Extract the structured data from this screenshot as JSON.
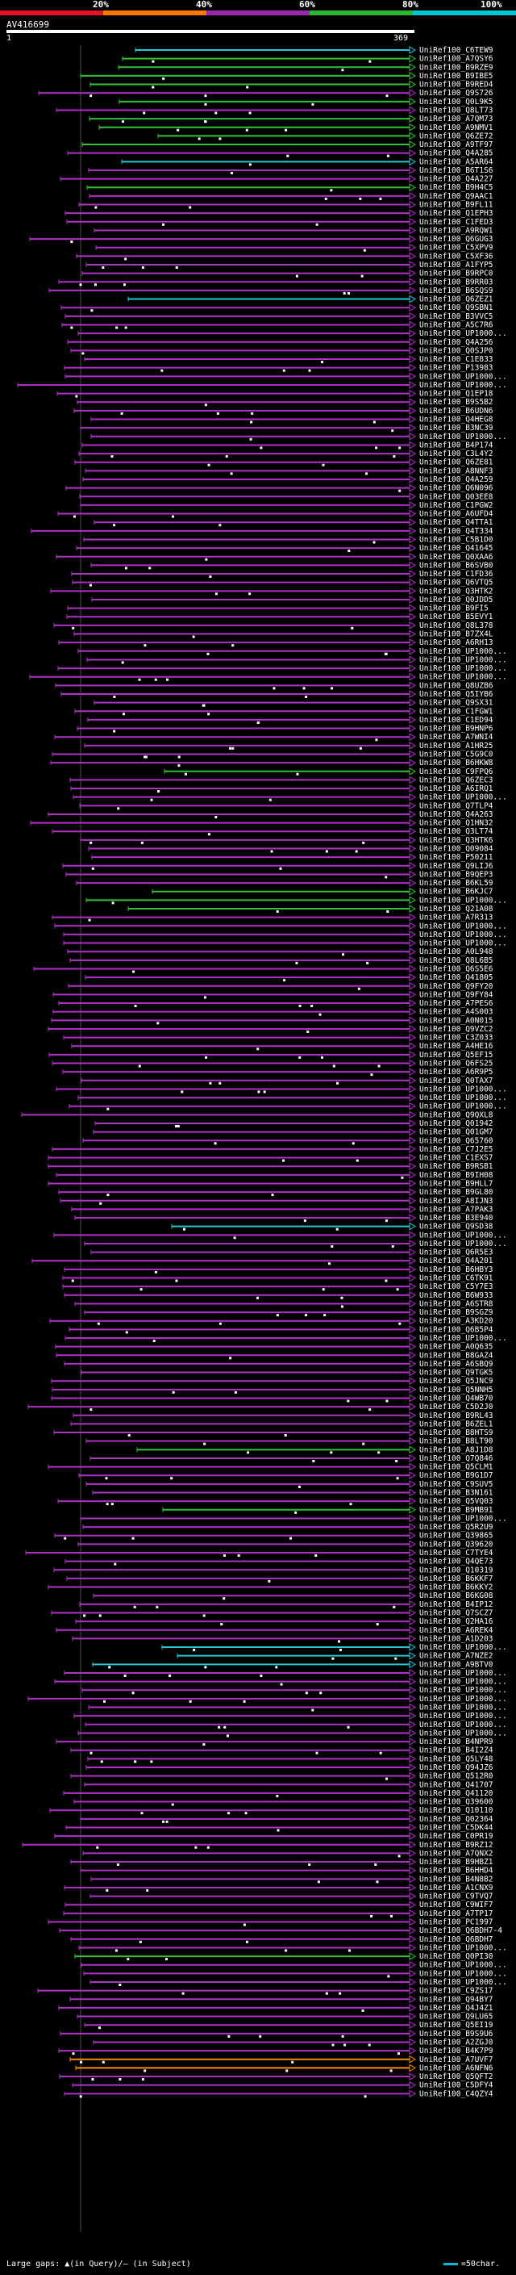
{
  "legend": {
    "labels": [
      "20%",
      "40%",
      "60%",
      "80%",
      "100%"
    ],
    "colors": [
      "#e8102b",
      "#ff7a00",
      "#9b27b0",
      "#2db52d",
      "#00c8d8"
    ]
  },
  "query": {
    "name": "AV416699",
    "start": "1",
    "end": "369"
  },
  "colors": {
    "violet": "#b030c8",
    "green": "#34c234",
    "cyan": "#20c8d8",
    "orange": "#ff8c00",
    "white": "#ffffff"
  },
  "hits": [
    {
      "label": "UniRef100_C6TEW9",
      "color": "cyan"
    },
    {
      "label": "UniRef100_A7QSY6",
      "color": "green"
    },
    {
      "label": "UniRef100_B9RZE9",
      "color": "green"
    },
    {
      "label": "UniRef100_B9IBE5",
      "color": "green"
    },
    {
      "label": "UniRef100_B9RED4",
      "color": "green"
    },
    {
      "label": "UniRef100_Q9S726",
      "color": "violet"
    },
    {
      "label": "UniRef100_Q0L9K5",
      "color": "green"
    },
    {
      "label": "UniRef100_Q8LT73",
      "color": "violet"
    },
    {
      "label": "UniRef100_A7QM73",
      "color": "green"
    },
    {
      "label": "UniRef100_A9NMV1",
      "color": "green"
    },
    {
      "label": "UniRef100_Q6ZE72",
      "color": "green"
    },
    {
      "label": "UniRef100_A9TF97",
      "color": "green"
    },
    {
      "label": "UniRef100_Q4A285",
      "color": "violet"
    },
    {
      "label": "UniRef100_A5AR64",
      "color": "cyan"
    },
    {
      "label": "UniRef100_B6T1S6",
      "color": "violet"
    },
    {
      "label": "UniRef100_Q4A227",
      "color": "violet"
    },
    {
      "label": "UniRef100_B9H4C5",
      "color": "green"
    },
    {
      "label": "UniRef100_Q9AAC1",
      "color": "violet"
    },
    {
      "label": "UniRef100_B9FL11",
      "color": "violet"
    },
    {
      "label": "UniRef100_Q1EPH3",
      "color": "violet"
    },
    {
      "label": "UniRef100_C1FED3",
      "color": "violet"
    },
    {
      "label": "UniRef100_A9RQW1",
      "color": "violet"
    },
    {
      "label": "UniRef100_Q6GUG3",
      "color": "violet"
    },
    {
      "label": "UniRef100_C5XPV9",
      "color": "violet"
    },
    {
      "label": "UniRef100_C5XF36",
      "color": "violet"
    },
    {
      "label": "UniRef100_A1FYP5",
      "color": "violet"
    },
    {
      "label": "UniRef100_B9RPC0",
      "color": "violet"
    },
    {
      "label": "UniRef100_B9RR03",
      "color": "violet"
    },
    {
      "label": "UniRef100_B6SQS9",
      "color": "violet"
    },
    {
      "label": "UniRef100_Q6ZEZ1",
      "color": "cyan"
    },
    {
      "label": "UniRef100_Q9SBN1",
      "color": "violet"
    },
    {
      "label": "UniRef100_B3VVC5",
      "color": "violet"
    },
    {
      "label": "UniRef100_A5C7R6",
      "color": "violet"
    },
    {
      "label": "UniRef100_UP1000...",
      "color": "violet"
    },
    {
      "label": "UniRef100_Q4A256",
      "color": "violet"
    },
    {
      "label": "UniRef100_Q0SJP0",
      "color": "violet"
    },
    {
      "label": "UniRef100_C1E833",
      "color": "violet"
    },
    {
      "label": "UniRef100_P13983",
      "color": "violet"
    },
    {
      "label": "UniRef100_UP1000...",
      "color": "violet"
    },
    {
      "label": "UniRef100_UP1000...",
      "color": "violet"
    },
    {
      "label": "UniRef100_Q1EP18",
      "color": "violet"
    },
    {
      "label": "UniRef100_B9S5B2",
      "color": "violet"
    },
    {
      "label": "UniRef100_B6UDN6",
      "color": "violet"
    },
    {
      "label": "UniRef100_Q4HEG8",
      "color": "violet"
    },
    {
      "label": "UniRef100_B3NC39",
      "color": "violet"
    },
    {
      "label": "UniRef100_UP1000...",
      "color": "violet"
    },
    {
      "label": "UniRef100_B4P174",
      "color": "violet"
    },
    {
      "label": "UniRef100_C3L4Y2",
      "color": "violet"
    },
    {
      "label": "UniRef100_Q6ZE81",
      "color": "violet"
    },
    {
      "label": "UniRef100_A8NNF3",
      "color": "violet"
    },
    {
      "label": "UniRef100_Q4A259",
      "color": "violet"
    },
    {
      "label": "UniRef100_Q6N096",
      "color": "violet"
    },
    {
      "label": "UniRef100_Q03EE8",
      "color": "violet"
    },
    {
      "label": "UniRef100_C1PGW2",
      "color": "violet"
    },
    {
      "label": "UniRef100_A6UFD4",
      "color": "violet"
    },
    {
      "label": "UniRef100_Q4TTA1",
      "color": "violet"
    },
    {
      "label": "UniRef100_Q4T334",
      "color": "violet"
    },
    {
      "label": "UniRef100_C5B1D0",
      "color": "violet"
    },
    {
      "label": "UniRef100_Q41645",
      "color": "violet"
    },
    {
      "label": "UniRef100_Q0XAA6",
      "color": "violet"
    },
    {
      "label": "UniRef100_B6SVB0",
      "color": "violet"
    },
    {
      "label": "UniRef100_C1FD36",
      "color": "violet"
    },
    {
      "label": "UniRef100_Q6VTQ5",
      "color": "violet"
    },
    {
      "label": "UniRef100_Q3HTK2",
      "color": "violet"
    },
    {
      "label": "UniRef100_Q0JDD5",
      "color": "violet"
    },
    {
      "label": "UniRef100_B9FI5",
      "color": "violet"
    },
    {
      "label": "UniRef100_B5EVY1",
      "color": "violet"
    },
    {
      "label": "UniRef100_Q8L378",
      "color": "violet"
    },
    {
      "label": "UniRef100_B7ZX4L",
      "color": "violet"
    },
    {
      "label": "UniRef100_A6RH13",
      "color": "violet"
    },
    {
      "label": "UniRef100_UP1000...",
      "color": "violet"
    },
    {
      "label": "UniRef100_UP1000...",
      "color": "violet"
    },
    {
      "label": "UniRef100_UP1000...",
      "color": "violet"
    },
    {
      "label": "UniRef100_UP1000...",
      "color": "violet"
    },
    {
      "label": "UniRef100_Q8UZB6",
      "color": "violet"
    },
    {
      "label": "UniRef100_Q5IYB6",
      "color": "violet"
    },
    {
      "label": "UniRef100_Q9SX31",
      "color": "violet"
    },
    {
      "label": "UniRef100_C1FGW1",
      "color": "violet"
    },
    {
      "label": "UniRef100_C1ED94",
      "color": "violet"
    },
    {
      "label": "UniRef100_B9HNP6",
      "color": "violet"
    },
    {
      "label": "UniRef100_A7WNI4",
      "color": "violet"
    },
    {
      "label": "UniRef100_A1HR25",
      "color": "violet"
    },
    {
      "label": "UniRef100_C5G9C0",
      "color": "violet"
    },
    {
      "label": "UniRef100_B6HKW8",
      "color": "violet"
    },
    {
      "label": "UniRef100_C9FPQ6",
      "color": "green"
    },
    {
      "label": "UniRef100_Q6ZEC3",
      "color": "violet"
    },
    {
      "label": "UniRef100_A6IRQ1",
      "color": "violet"
    },
    {
      "label": "UniRef100_UP1000...",
      "color": "violet"
    },
    {
      "label": "UniRef100_Q7TLP4",
      "color": "violet"
    },
    {
      "label": "UniRef100_Q4A263",
      "color": "violet"
    },
    {
      "label": "UniRef100_Q1HN32",
      "color": "violet"
    },
    {
      "label": "UniRef100_Q3LT74",
      "color": "violet"
    },
    {
      "label": "UniRef100_Q3HTK6",
      "color": "violet"
    },
    {
      "label": "UniRef100_Q09084",
      "color": "violet"
    },
    {
      "label": "UniRef100_P50211",
      "color": "violet"
    },
    {
      "label": "UniRef100_Q9LIJ6",
      "color": "violet"
    },
    {
      "label": "UniRef100_B9QEP3",
      "color": "violet"
    },
    {
      "label": "UniRef100_B6KL59",
      "color": "violet"
    },
    {
      "label": "UniRef100_B6KJC7",
      "color": "green"
    },
    {
      "label": "UniRef100_UP1000...",
      "color": "green"
    },
    {
      "label": "UniRef100_Q21A08",
      "color": "green"
    },
    {
      "label": "UniRef100_A7R313",
      "color": "violet"
    },
    {
      "label": "UniRef100_UP1000...",
      "color": "violet"
    },
    {
      "label": "UniRef100_UP1000...",
      "color": "violet"
    },
    {
      "label": "UniRef100_UP1000...",
      "color": "violet"
    },
    {
      "label": "UniRef100_A0L948",
      "color": "violet"
    },
    {
      "label": "UniRef100_Q8L6B5",
      "color": "violet"
    },
    {
      "label": "UniRef100_Q6S5E6",
      "color": "violet"
    },
    {
      "label": "UniRef100_Q41805",
      "color": "violet"
    },
    {
      "label": "UniRef100_Q9FY20",
      "color": "violet"
    },
    {
      "label": "UniRef100_Q9FY84",
      "color": "violet"
    },
    {
      "label": "UniRef100_A7PES6",
      "color": "violet"
    },
    {
      "label": "UniRef100_A4S003",
      "color": "violet"
    },
    {
      "label": "UniRef100_A0N015",
      "color": "violet"
    },
    {
      "label": "UniRef100_Q9VZC2",
      "color": "violet"
    },
    {
      "label": "UniRef100_C3Z033",
      "color": "violet"
    },
    {
      "label": "UniRef100_A4HE16",
      "color": "violet"
    },
    {
      "label": "UniRef100_Q5EF15",
      "color": "violet"
    },
    {
      "label": "UniRef100_Q6FS25",
      "color": "violet"
    },
    {
      "label": "UniRef100_A6R9P5",
      "color": "violet"
    },
    {
      "label": "UniRef100_Q0TAX7",
      "color": "violet"
    },
    {
      "label": "UniRef100_UP1000...",
      "color": "violet"
    },
    {
      "label": "UniRef100_UP1000...",
      "color": "violet"
    },
    {
      "label": "UniRef100_UP1000...",
      "color": "violet"
    },
    {
      "label": "UniRef100_Q9QXL8",
      "color": "violet"
    },
    {
      "label": "UniRef100_Q01942",
      "color": "violet"
    },
    {
      "label": "UniRef100_Q01GM7",
      "color": "violet"
    },
    {
      "label": "UniRef100_Q65760",
      "color": "violet"
    },
    {
      "label": "UniRef100_C7J2E5",
      "color": "violet"
    },
    {
      "label": "UniRef100_C1EXS7",
      "color": "violet"
    },
    {
      "label": "UniRef100_B9RSB1",
      "color": "violet"
    },
    {
      "label": "UniRef100_B9IH08",
      "color": "violet"
    },
    {
      "label": "UniRef100_B9HLL7",
      "color": "violet"
    },
    {
      "label": "UniRef100_B9GL80",
      "color": "violet"
    },
    {
      "label": "UniRef100_A8IJN3",
      "color": "violet"
    },
    {
      "label": "UniRef100_A7PAK3",
      "color": "violet"
    },
    {
      "label": "UniRef100_B3E940",
      "color": "violet"
    },
    {
      "label": "UniRef100_Q9SD38",
      "color": "cyan"
    },
    {
      "label": "UniRef100_UP1000...",
      "color": "violet"
    },
    {
      "label": "UniRef100_UP1000...",
      "color": "violet"
    },
    {
      "label": "UniRef100_Q6R5E3",
      "color": "violet"
    },
    {
      "label": "UniRef100_Q4A201",
      "color": "violet"
    },
    {
      "label": "UniRef100_B6HBY3",
      "color": "violet"
    },
    {
      "label": "UniRef100_C6TK91",
      "color": "violet"
    },
    {
      "label": "UniRef100_C5Y7E3",
      "color": "violet"
    },
    {
      "label": "UniRef100_B6W933",
      "color": "violet"
    },
    {
      "label": "UniRef100_A6STR8",
      "color": "violet"
    },
    {
      "label": "UniRef100_B9SGZ9",
      "color": "violet"
    },
    {
      "label": "UniRef100_A3KD20",
      "color": "violet"
    },
    {
      "label": "UniRef100_Q6B5P4",
      "color": "violet"
    },
    {
      "label": "UniRef100_UP1000...",
      "color": "violet"
    },
    {
      "label": "UniRef100_A0Q635",
      "color": "violet"
    },
    {
      "label": "UniRef100_B8GAZ4",
      "color": "violet"
    },
    {
      "label": "UniRef100_A6SBQ9",
      "color": "violet"
    },
    {
      "label": "UniRef100_Q9TGK5",
      "color": "violet"
    },
    {
      "label": "UniRef100_Q5JNC9",
      "color": "violet"
    },
    {
      "label": "UniRef100_Q5NNH5",
      "color": "violet"
    },
    {
      "label": "UniRef100_Q4WB70",
      "color": "violet"
    },
    {
      "label": "UniRef100_C5D2J0",
      "color": "violet"
    },
    {
      "label": "UniRef100_B9RL43",
      "color": "violet"
    },
    {
      "label": "UniRef100_B6ZEL1",
      "color": "violet"
    },
    {
      "label": "UniRef100_B8HTS9",
      "color": "violet"
    },
    {
      "label": "UniRef100_B8LT90",
      "color": "violet"
    },
    {
      "label": "UniRef100_A8J1D8",
      "color": "green"
    },
    {
      "label": "UniRef100_Q7Q846",
      "color": "violet"
    },
    {
      "label": "UniRef100_Q5CLM1",
      "color": "violet"
    },
    {
      "label": "UniRef100_B9G1D7",
      "color": "violet"
    },
    {
      "label": "UniRef100_C9SUV5",
      "color": "violet"
    },
    {
      "label": "UniRef100_B3N161",
      "color": "violet"
    },
    {
      "label": "UniRef100_Q5VQ03",
      "color": "violet"
    },
    {
      "label": "UniRef100_B9MB91",
      "color": "green"
    },
    {
      "label": "UniRef100_UP1000...",
      "color": "violet"
    },
    {
      "label": "UniRef100_Q5R2U9",
      "color": "violet"
    },
    {
      "label": "UniRef100_Q39865",
      "color": "violet"
    },
    {
      "label": "UniRef100_Q39620",
      "color": "violet"
    },
    {
      "label": "UniRef100_C7TYE4",
      "color": "violet"
    },
    {
      "label": "UniRef100_Q4QE73",
      "color": "violet"
    },
    {
      "label": "UniRef100_Q10319",
      "color": "violet"
    },
    {
      "label": "UniRef100_B6KKF7",
      "color": "violet"
    },
    {
      "label": "UniRef100_B6KKY2",
      "color": "violet"
    },
    {
      "label": "UniRef100_B6KG08",
      "color": "violet"
    },
    {
      "label": "UniRef100_B4IP12",
      "color": "violet"
    },
    {
      "label": "UniRef100_Q7SCZ7",
      "color": "violet"
    },
    {
      "label": "UniRef100_Q2HA16",
      "color": "violet"
    },
    {
      "label": "UniRef100_A6REK4",
      "color": "violet"
    },
    {
      "label": "UniRef100_A1D203",
      "color": "violet"
    },
    {
      "label": "UniRef100_UP1000...",
      "color": "cyan"
    },
    {
      "label": "UniRef100_A7NZE2",
      "color": "cyan"
    },
    {
      "label": "UniRef100_A9BTV0",
      "color": "cyan"
    },
    {
      "label": "UniRef100_UP1000...",
      "color": "violet"
    },
    {
      "label": "UniRef100_UP1000...",
      "color": "violet"
    },
    {
      "label": "UniRef100_UP1000...",
      "color": "violet"
    },
    {
      "label": "UniRef100_UP1000...",
      "color": "violet"
    },
    {
      "label": "UniRef100_UP1000...",
      "color": "violet"
    },
    {
      "label": "UniRef100_UP1000...",
      "color": "violet"
    },
    {
      "label": "UniRef100_UP1000...",
      "color": "violet"
    },
    {
      "label": "UniRef100_UP1000...",
      "color": "violet"
    },
    {
      "label": "UniRef100_B4NPR9",
      "color": "violet"
    },
    {
      "label": "UniRef100_B4I2Z4",
      "color": "violet"
    },
    {
      "label": "UniRef100_Q5LY48",
      "color": "violet"
    },
    {
      "label": "UniRef100_Q94JZ6",
      "color": "violet"
    },
    {
      "label": "UniRef100_Q512R0",
      "color": "violet"
    },
    {
      "label": "UniRef100_Q41707",
      "color": "violet"
    },
    {
      "label": "UniRef100_Q41120",
      "color": "violet"
    },
    {
      "label": "UniRef100_Q39600",
      "color": "violet"
    },
    {
      "label": "UniRef100_Q10110",
      "color": "violet"
    },
    {
      "label": "UniRef100_Q02364",
      "color": "violet"
    },
    {
      "label": "UniRef100_C5DK44",
      "color": "violet"
    },
    {
      "label": "UniRef100_C0PR19",
      "color": "violet"
    },
    {
      "label": "UniRef100_B9RZ12",
      "color": "violet"
    },
    {
      "label": "UniRef100_A7QNX2",
      "color": "violet"
    },
    {
      "label": "UniRef100_B9HBZ1",
      "color": "violet"
    },
    {
      "label": "UniRef100_B6HHD4",
      "color": "violet"
    },
    {
      "label": "UniRef100_B4N8B2",
      "color": "violet"
    },
    {
      "label": "UniRef100_A1CNX9",
      "color": "violet"
    },
    {
      "label": "UniRef100_C9TVQ7",
      "color": "violet"
    },
    {
      "label": "UniRef100_C9WIF7",
      "color": "violet"
    },
    {
      "label": "UniRef100_A7TP17",
      "color": "violet"
    },
    {
      "label": "UniRef100_PC1997",
      "color": "violet"
    },
    {
      "label": "UniRef100_Q6BDH7-4",
      "color": "violet"
    },
    {
      "label": "UniRef100_Q6BDH7",
      "color": "violet"
    },
    {
      "label": "UniRef100_UP1000...",
      "color": "violet"
    },
    {
      "label": "UniRef100_Q0PI30",
      "color": "green"
    },
    {
      "label": "UniRef100_UP1000...",
      "color": "violet"
    },
    {
      "label": "UniRef100_UP1000...",
      "color": "violet"
    },
    {
      "label": "UniRef100_UP1000...",
      "color": "violet"
    },
    {
      "label": "UniRef100_C9ZS17",
      "color": "violet"
    },
    {
      "label": "UniRef100_Q94BY7",
      "color": "violet"
    },
    {
      "label": "UniRef100_Q4J4Z1",
      "color": "violet"
    },
    {
      "label": "UniRef100_Q9LU65",
      "color": "violet"
    },
    {
      "label": "UniRef100_Q5EI19",
      "color": "violet"
    },
    {
      "label": "UniRef100_B9S9U6",
      "color": "violet"
    },
    {
      "label": "UniRef100_A2ZGJ0",
      "color": "violet"
    },
    {
      "label": "UniRef100_B4K7P9",
      "color": "violet"
    },
    {
      "label": "UniRef100_A7UVF7",
      "color": "orange"
    },
    {
      "label": "UniRef100_A6NFN6",
      "color": "orange"
    },
    {
      "label": "UniRef100_Q5QFT2",
      "color": "violet"
    },
    {
      "label": "UniRef100_C5DFY4",
      "color": "violet"
    },
    {
      "label": "UniRef100_C4QZY4",
      "color": "violet"
    }
  ],
  "footer": {
    "text": "Large gaps: ▲(in Query)/– (in Subject)",
    "key": "=50char."
  }
}
